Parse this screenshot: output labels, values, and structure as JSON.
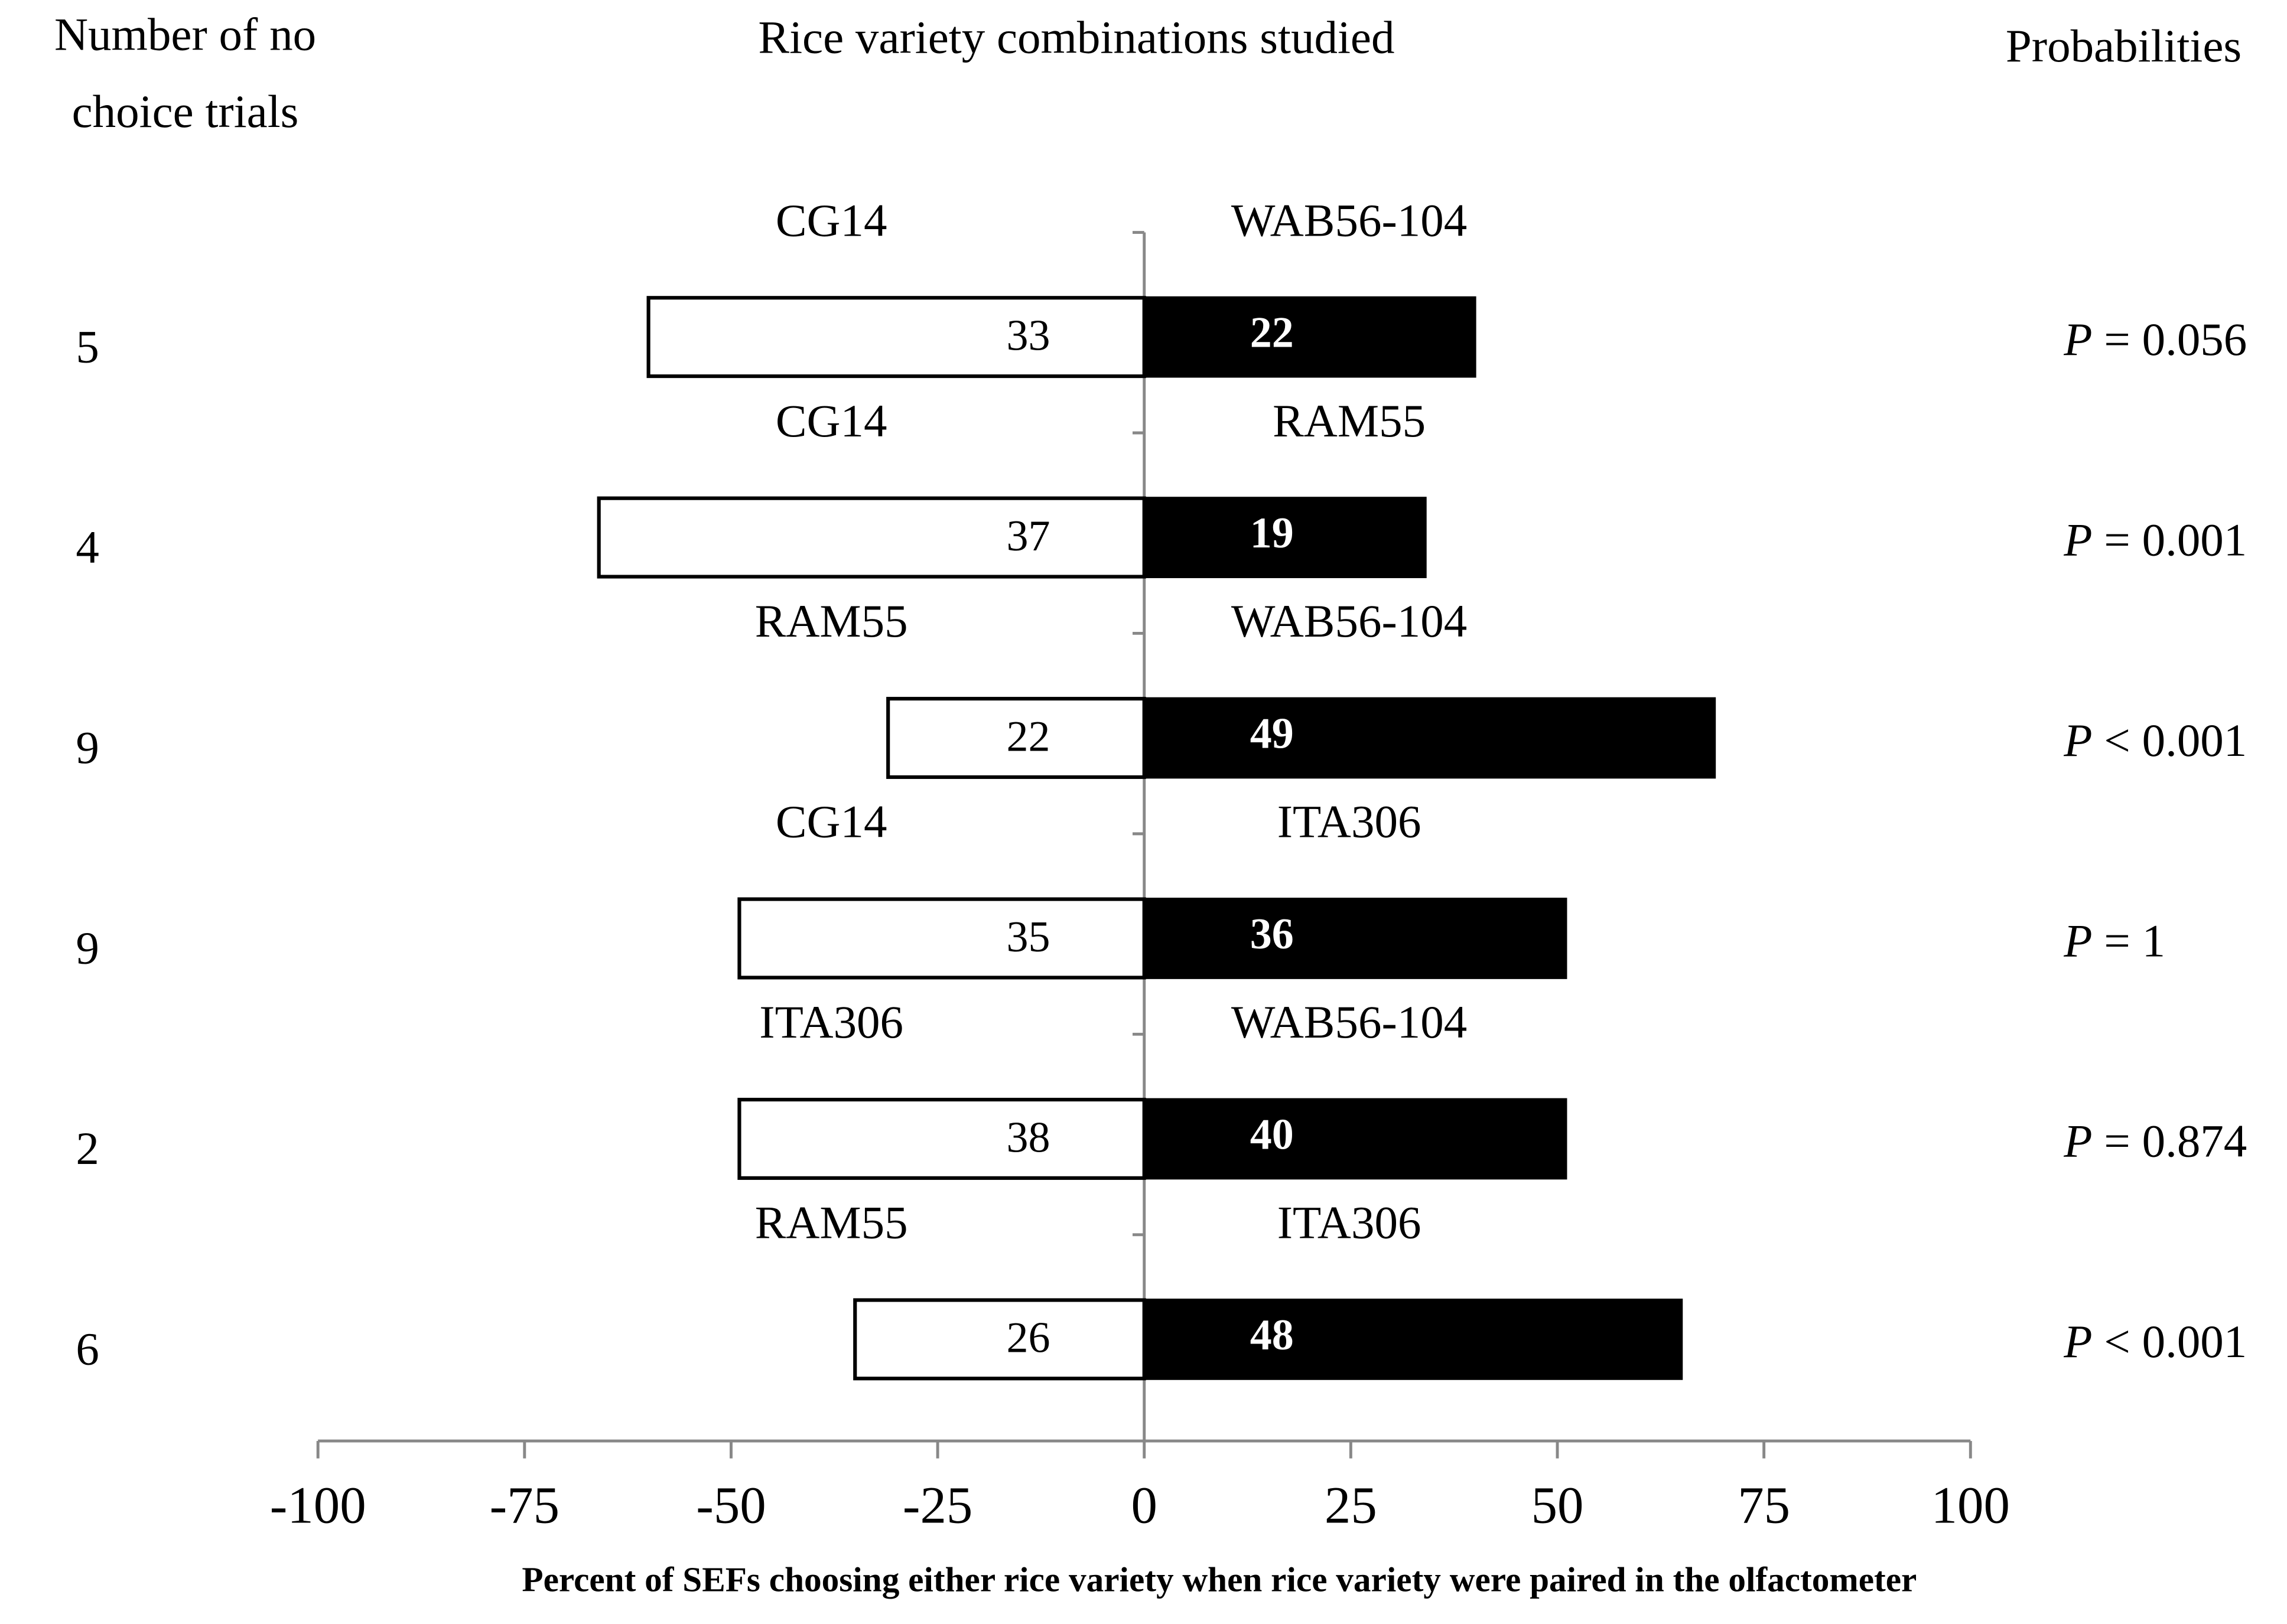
{
  "chart_data": {
    "type": "diverging-bar",
    "title": "Rice variety combinations studied",
    "left_header": [
      "Number of no",
      "choice trials"
    ],
    "right_header": "Probabilities",
    "xlabel": "Percent of SEFs choosing either rice variety when rice variety were paired in the olfactometer",
    "xlim": [
      -100,
      100
    ],
    "xticks": [
      -100,
      -75,
      -50,
      -25,
      0,
      25,
      50,
      75,
      100
    ],
    "left_color": "#ffffff",
    "right_color": "#000000",
    "p_symbol": "P",
    "rows": [
      {
        "trials": 5,
        "left_variety": "CG14",
        "right_variety": "WAB56-104",
        "left_value": -60,
        "right_value": 40,
        "left_count": 33,
        "right_count": 22,
        "probability": "= 0.056"
      },
      {
        "trials": 4,
        "left_variety": "CG14",
        "right_variety": "RAM55",
        "left_value": -66,
        "right_value": 34,
        "left_count": 37,
        "right_count": 19,
        "probability": "= 0.001"
      },
      {
        "trials": 9,
        "left_variety": "RAM55",
        "right_variety": "WAB56-104",
        "left_value": -31,
        "right_value": 69,
        "left_count": 22,
        "right_count": 49,
        "probability": "< 0.001"
      },
      {
        "trials": 9,
        "left_variety": "CG14",
        "right_variety": "ITA306",
        "left_value": -49,
        "right_value": 51,
        "left_count": 35,
        "right_count": 36,
        "probability": "= 1"
      },
      {
        "trials": 2,
        "left_variety": "ITA306",
        "right_variety": "WAB56-104",
        "left_value": -49,
        "right_value": 51,
        "left_count": 38,
        "right_count": 40,
        "probability": "= 0.874"
      },
      {
        "trials": 6,
        "left_variety": "RAM55",
        "right_variety": "ITA306",
        "left_value": -35,
        "right_value": 65,
        "left_count": 26,
        "right_count": 48,
        "probability": "< 0.001"
      }
    ]
  }
}
